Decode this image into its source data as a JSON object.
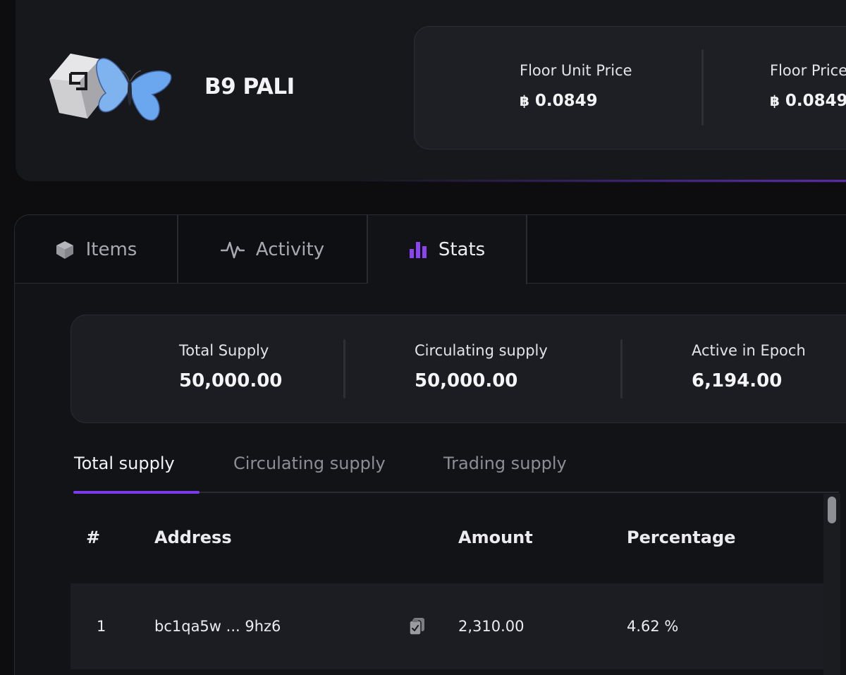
{
  "header": {
    "collection_name": "B9 PALI",
    "prices": [
      {
        "label": "Floor Unit Price",
        "currency_symbol": "฿",
        "value": "0.0849"
      },
      {
        "label": "Floor Price",
        "currency_symbol": "฿",
        "value": "0.0849"
      }
    ]
  },
  "tabs": [
    {
      "label": "Items",
      "icon": "cube-icon"
    },
    {
      "label": "Activity",
      "icon": "pulse-icon"
    },
    {
      "label": "Stats",
      "icon": "bar-chart-icon",
      "active": true
    }
  ],
  "stats": [
    {
      "label": "Total Supply",
      "value": "50,000.00"
    },
    {
      "label": "Circulating supply",
      "value": "50,000.00"
    },
    {
      "label": "Active in Epoch",
      "value": "6,194.00"
    }
  ],
  "subtabs": [
    {
      "label": "Total supply",
      "active": true
    },
    {
      "label": "Circulating supply"
    },
    {
      "label": "Trading supply"
    }
  ],
  "table": {
    "headers": {
      "rank": "#",
      "address": "Address",
      "amount": "Amount",
      "percentage": "Percentage"
    },
    "rows": [
      {
        "rank": "1",
        "address": "bc1qa5w ... 9hz6",
        "amount": "2,310.00",
        "percentage": "4.62 %"
      }
    ]
  },
  "colors": {
    "accent": "#7c3aed",
    "background": "#0d0d10",
    "card": "#17181c"
  }
}
